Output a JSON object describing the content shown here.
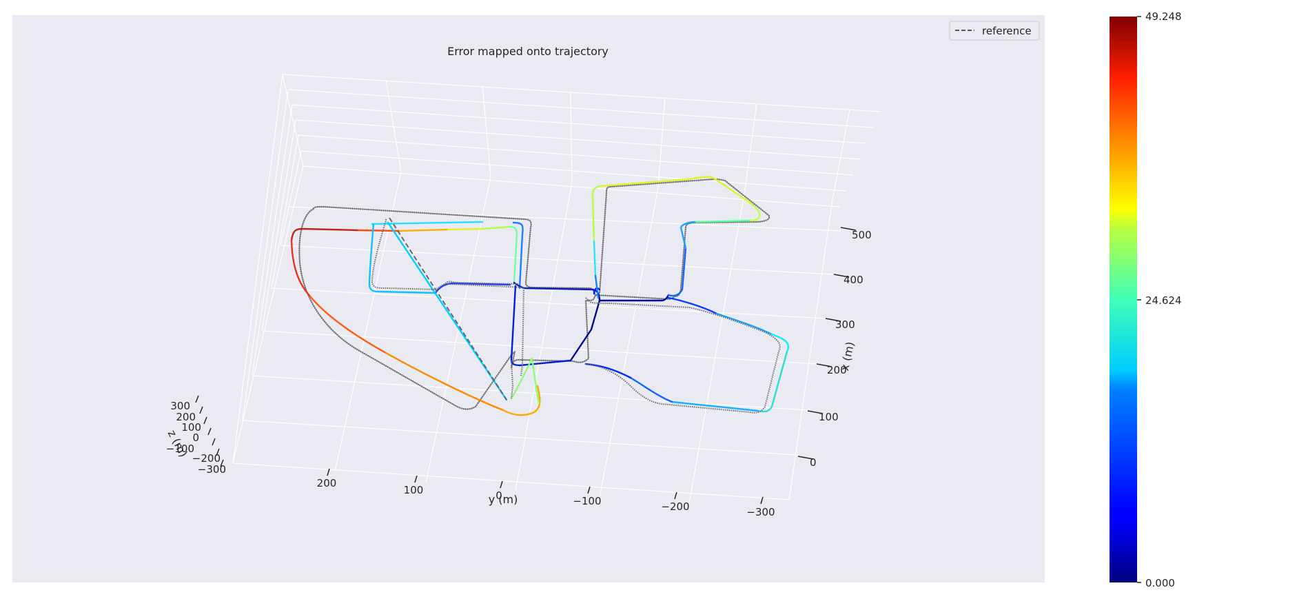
{
  "chart_data": {
    "type": "line",
    "title": "Error mapped onto trajectory",
    "xlabel": "x (m)",
    "ylabel": "y (m)",
    "zlabel": "z (m)",
    "x_ticks": [
      "0",
      "100",
      "200",
      "300",
      "400",
      "500"
    ],
    "y_ticks": [
      "200",
      "100",
      "0",
      "−100",
      "−200",
      "−300"
    ],
    "z_ticks": [
      "300",
      "200",
      "100",
      "0",
      "−100",
      "−200",
      "−300"
    ],
    "legend": [
      {
        "label": "reference",
        "style": "dashed",
        "color": "#666666"
      }
    ],
    "legend_position": "top-right",
    "grid": true,
    "colormap": "jet",
    "colorbar": {
      "min": 0.0,
      "max": 49.248,
      "ticks": [
        "49.248",
        "24.624",
        "0.000"
      ]
    },
    "series": [
      {
        "name": "reference",
        "style": "dashed",
        "color": "#666666"
      }
    ]
  }
}
